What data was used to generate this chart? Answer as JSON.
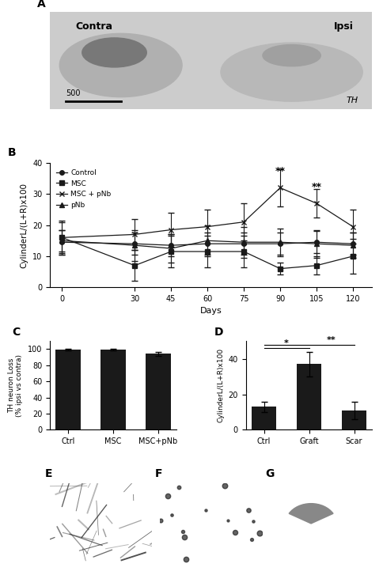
{
  "panel_A": {
    "label": "A",
    "text_contra": "Contra",
    "text_ipsi": "Ipsi",
    "text_TH": "TH",
    "text_scale": "500",
    "bg_color": "#d8d8d8"
  },
  "panel_B": {
    "label": "B",
    "title": "",
    "xlabel": "Days",
    "ylabel": "CylinderL/(L+R)x100",
    "ylim": [
      0,
      40
    ],
    "yticks": [
      0,
      10,
      20,
      30,
      40
    ],
    "xticks": [
      0,
      30,
      45,
      60,
      75,
      90,
      105,
      120
    ],
    "days": [
      0,
      30,
      45,
      60,
      75,
      90,
      105,
      120
    ],
    "control": {
      "y": [
        14.5,
        14.0,
        13.5,
        14.0,
        14.0,
        14.0,
        14.5,
        14.0
      ],
      "yerr": [
        4.0,
        3.5,
        3.5,
        3.5,
        3.5,
        3.5,
        3.5,
        3.5
      ],
      "marker": "o",
      "label": "Control"
    },
    "MSC": {
      "y": [
        16.0,
        7.0,
        11.5,
        11.5,
        11.5,
        6.0,
        7.0,
        10.0
      ],
      "yerr": [
        5.0,
        5.0,
        5.0,
        5.0,
        5.0,
        2.0,
        3.0,
        5.5
      ],
      "marker": "s",
      "label": "MSC"
    },
    "MSCpNb": {
      "y": [
        16.0,
        17.0,
        18.5,
        19.5,
        21.0,
        32.0,
        27.0,
        19.5
      ],
      "yerr": [
        5.5,
        5.0,
        5.5,
        5.5,
        6.0,
        6.0,
        4.5,
        5.5
      ],
      "marker": "x",
      "label": "MSC + pNb"
    },
    "pNb": {
      "y": [
        15.0,
        13.5,
        12.5,
        15.0,
        14.5,
        14.5,
        14.0,
        13.5
      ],
      "yerr": [
        3.5,
        5.0,
        4.5,
        5.0,
        5.0,
        4.5,
        4.5,
        4.0
      ],
      "marker": "^",
      "label": "pNb"
    },
    "sig_90": "**",
    "sig_105": "**",
    "line_color": "#1a1a1a"
  },
  "panel_C": {
    "label": "C",
    "xlabel": "",
    "ylabel": "TH neuron Loss\n(% ipsi vs contra)",
    "ylim": [
      0,
      110
    ],
    "yticks": [
      0,
      20,
      40,
      60,
      80,
      100
    ],
    "categories": [
      "Ctrl",
      "MSC",
      "MSC+pNb"
    ],
    "values": [
      99.5,
      99.0,
      94.0
    ],
    "yerr": [
      1.0,
      1.0,
      2.5
    ],
    "bar_color": "#1a1a1a"
  },
  "panel_D": {
    "label": "D",
    "xlabel": "",
    "ylabel": "CylinderL/(L+R)x100",
    "ylim": [
      0,
      50
    ],
    "yticks": [
      0,
      20,
      40
    ],
    "categories": [
      "Ctrl",
      "Graft",
      "Scar"
    ],
    "values": [
      13.0,
      37.0,
      11.0
    ],
    "yerr": [
      3.0,
      7.0,
      5.0
    ],
    "bar_color": "#1a1a1a",
    "sig_ctrl_graft": "*",
    "sig_graft_scar": "**"
  },
  "panel_E": {
    "label": "E",
    "bg_color": "#c8c8c8"
  },
  "panel_F": {
    "label": "F",
    "bg_color": "#d0d0d0"
  },
  "panel_G": {
    "label": "G",
    "bg_color": "#e0e0e0"
  },
  "fig_bg": "#ffffff"
}
